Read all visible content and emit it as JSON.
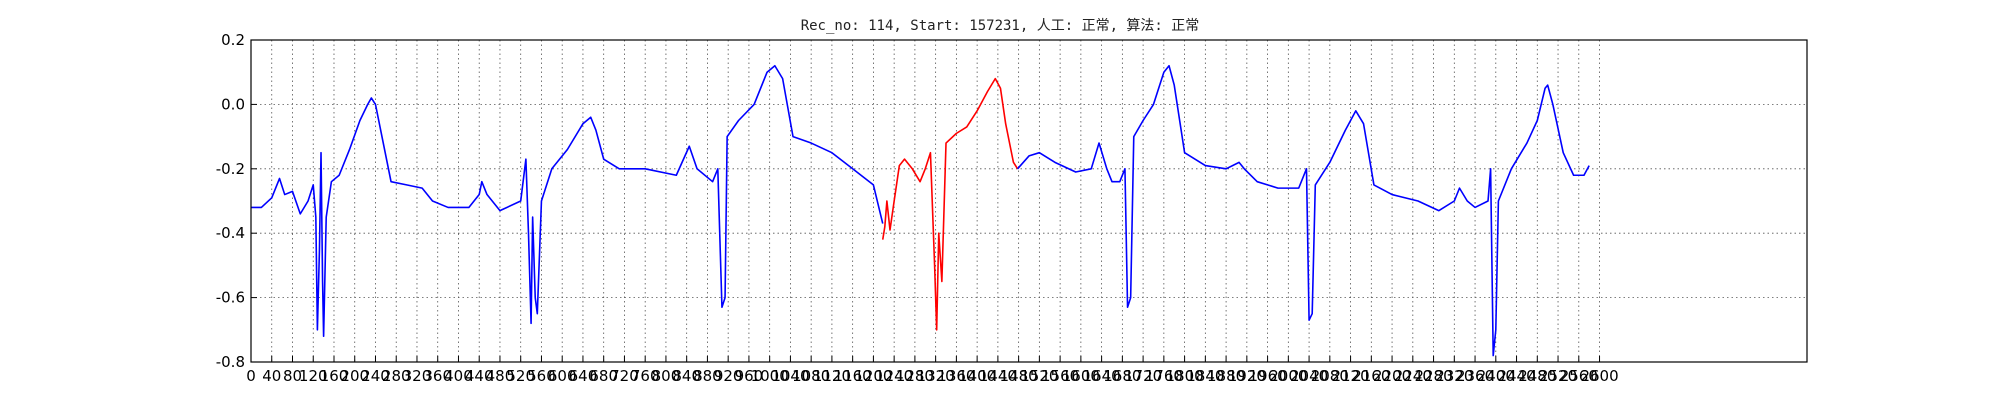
{
  "chart_data": {
    "type": "line",
    "title": "Rec_no: 114, Start: 157231, 人工: 正常, 算法: 正常",
    "xlabel": "",
    "ylabel": "",
    "xlim": [
      0,
      3000
    ],
    "ylim": [
      -0.8,
      0.2
    ],
    "y_ticks": [
      "0.2",
      "0.0",
      "-0.2",
      "-0.4",
      "-0.6",
      "-0.8"
    ],
    "x_ticks": [
      "0",
      "40",
      "80",
      "120",
      "160",
      "200",
      "240",
      "280",
      "320",
      "360",
      "400",
      "440",
      "480",
      "520",
      "560",
      "600",
      "640",
      "680",
      "720",
      "760",
      "800",
      "840",
      "880",
      "920",
      "960",
      "1000",
      "1040",
      "1080",
      "1120",
      "1160",
      "1200",
      "1240",
      "1280",
      "1320",
      "1360",
      "1400",
      "1440",
      "1480",
      "1520",
      "1560",
      "1600",
      "1640",
      "1680",
      "1720",
      "1760",
      "1800",
      "1840",
      "1880",
      "1920",
      "1960",
      "2000",
      "2040",
      "2080",
      "2120",
      "2160",
      "2200",
      "2240",
      "2280",
      "2320",
      "2360",
      "2400",
      "2440",
      "2480",
      "2520",
      "2560",
      "2600"
    ],
    "grid": true,
    "series": [
      {
        "color": "#0000ff",
        "points": [
          [
            0,
            -0.32
          ],
          [
            20,
            -0.32
          ],
          [
            40,
            -0.29
          ],
          [
            55,
            -0.23
          ],
          [
            65,
            -0.28
          ],
          [
            80,
            -0.27
          ],
          [
            95,
            -0.34
          ],
          [
            110,
            -0.3
          ],
          [
            120,
            -0.25
          ],
          [
            125,
            -0.35
          ],
          [
            128,
            -0.7
          ],
          [
            132,
            -0.45
          ],
          [
            135,
            -0.15
          ],
          [
            138,
            -0.55
          ],
          [
            140,
            -0.72
          ],
          [
            145,
            -0.35
          ],
          [
            155,
            -0.24
          ],
          [
            170,
            -0.22
          ],
          [
            190,
            -0.14
          ],
          [
            210,
            -0.05
          ],
          [
            225,
            0.0
          ],
          [
            232,
            0.02
          ],
          [
            240,
            0.0
          ],
          [
            255,
            -0.12
          ],
          [
            270,
            -0.24
          ],
          [
            300,
            -0.25
          ],
          [
            330,
            -0.26
          ],
          [
            350,
            -0.3
          ],
          [
            380,
            -0.32
          ],
          [
            420,
            -0.32
          ],
          [
            440,
            -0.28
          ],
          [
            445,
            -0.24
          ],
          [
            455,
            -0.28
          ],
          [
            480,
            -0.33
          ],
          [
            520,
            -0.3
          ],
          [
            530,
            -0.17
          ],
          [
            535,
            -0.4
          ],
          [
            540,
            -0.68
          ],
          [
            543,
            -0.35
          ],
          [
            548,
            -0.6
          ],
          [
            552,
            -0.65
          ],
          [
            560,
            -0.3
          ],
          [
            580,
            -0.2
          ],
          [
            610,
            -0.14
          ],
          [
            640,
            -0.06
          ],
          [
            655,
            -0.04
          ],
          [
            665,
            -0.08
          ],
          [
            680,
            -0.17
          ],
          [
            710,
            -0.2
          ],
          [
            760,
            -0.2
          ],
          [
            820,
            -0.22
          ],
          [
            845,
            -0.13
          ],
          [
            860,
            -0.2
          ],
          [
            890,
            -0.24
          ],
          [
            900,
            -0.2
          ],
          [
            908,
            -0.63
          ],
          [
            914,
            -0.6
          ],
          [
            918,
            -0.1
          ],
          [
            940,
            -0.05
          ],
          [
            970,
            0.0
          ],
          [
            995,
            0.1
          ],
          [
            1010,
            0.12
          ],
          [
            1025,
            0.08
          ],
          [
            1045,
            -0.1
          ],
          [
            1080,
            -0.12
          ],
          [
            1120,
            -0.15
          ],
          [
            1160,
            -0.2
          ],
          [
            1200,
            -0.25
          ],
          [
            1218,
            -0.37
          ]
        ]
      },
      {
        "color": "#ff0000",
        "points": [
          [
            1218,
            -0.42
          ],
          [
            1222,
            -0.38
          ],
          [
            1226,
            -0.3
          ],
          [
            1232,
            -0.39
          ],
          [
            1240,
            -0.3
          ],
          [
            1250,
            -0.19
          ],
          [
            1260,
            -0.17
          ],
          [
            1275,
            -0.2
          ],
          [
            1290,
            -0.24
          ],
          [
            1300,
            -0.2
          ],
          [
            1310,
            -0.15
          ],
          [
            1318,
            -0.5
          ],
          [
            1322,
            -0.7
          ],
          [
            1326,
            -0.4
          ],
          [
            1332,
            -0.55
          ],
          [
            1340,
            -0.12
          ],
          [
            1360,
            -0.09
          ],
          [
            1380,
            -0.07
          ],
          [
            1400,
            -0.02
          ],
          [
            1420,
            0.04
          ],
          [
            1435,
            0.08
          ],
          [
            1445,
            0.05
          ],
          [
            1455,
            -0.06
          ],
          [
            1470,
            -0.18
          ],
          [
            1478,
            -0.2
          ]
        ]
      },
      {
        "color": "#0000ff",
        "points": [
          [
            1478,
            -0.2
          ],
          [
            1500,
            -0.16
          ],
          [
            1520,
            -0.15
          ],
          [
            1550,
            -0.18
          ],
          [
            1590,
            -0.21
          ],
          [
            1620,
            -0.2
          ],
          [
            1635,
            -0.12
          ],
          [
            1650,
            -0.2
          ],
          [
            1660,
            -0.24
          ],
          [
            1675,
            -0.24
          ],
          [
            1685,
            -0.2
          ],
          [
            1690,
            -0.63
          ],
          [
            1696,
            -0.6
          ],
          [
            1702,
            -0.1
          ],
          [
            1720,
            -0.05
          ],
          [
            1740,
            0.0
          ],
          [
            1760,
            0.1
          ],
          [
            1770,
            0.12
          ],
          [
            1780,
            0.06
          ],
          [
            1800,
            -0.15
          ],
          [
            1840,
            -0.19
          ],
          [
            1880,
            -0.2
          ],
          [
            1905,
            -0.18
          ],
          [
            1915,
            -0.2
          ],
          [
            1940,
            -0.24
          ],
          [
            1980,
            -0.26
          ],
          [
            2000,
            -0.26
          ],
          [
            2020,
            -0.26
          ],
          [
            2035,
            -0.2
          ],
          [
            2040,
            -0.67
          ],
          [
            2046,
            -0.65
          ],
          [
            2052,
            -0.25
          ],
          [
            2080,
            -0.18
          ],
          [
            2110,
            -0.08
          ],
          [
            2130,
            -0.02
          ],
          [
            2145,
            -0.06
          ],
          [
            2165,
            -0.25
          ],
          [
            2200,
            -0.28
          ],
          [
            2250,
            -0.3
          ],
          [
            2290,
            -0.33
          ],
          [
            2320,
            -0.3
          ],
          [
            2330,
            -0.26
          ],
          [
            2345,
            -0.3
          ],
          [
            2360,
            -0.32
          ],
          [
            2385,
            -0.3
          ],
          [
            2390,
            -0.2
          ],
          [
            2395,
            -0.78
          ],
          [
            2400,
            -0.7
          ],
          [
            2405,
            -0.3
          ],
          [
            2430,
            -0.2
          ],
          [
            2460,
            -0.12
          ],
          [
            2480,
            -0.05
          ],
          [
            2495,
            0.05
          ],
          [
            2500,
            0.06
          ],
          [
            2510,
            0.0
          ],
          [
            2530,
            -0.15
          ],
          [
            2550,
            -0.22
          ],
          [
            2570,
            -0.22
          ],
          [
            2580,
            -0.19
          ]
        ]
      }
    ]
  }
}
